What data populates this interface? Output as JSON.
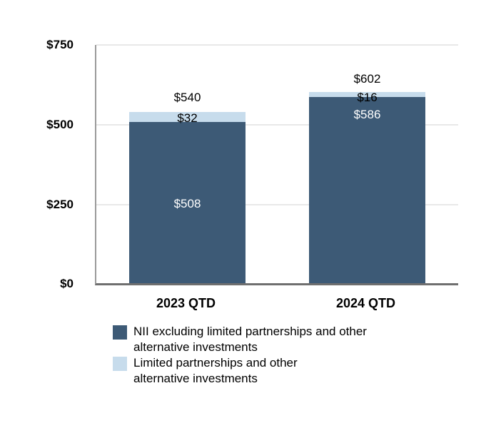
{
  "chart_data": {
    "type": "bar",
    "stacked": true,
    "title": "",
    "xlabel": "",
    "ylabel": "",
    "categories": [
      "2023 QTD",
      "2024 QTD"
    ],
    "series": [
      {
        "name": "NII excluding limited partnerships and other alternative investments",
        "color": "#3d5a76",
        "values": [
          508,
          586
        ],
        "value_labels": [
          "$508",
          "$586"
        ]
      },
      {
        "name": "Limited partnerships and other alternative investments",
        "color": "#c7dcec",
        "values": [
          32,
          16
        ],
        "value_labels": [
          "$32",
          "$16"
        ]
      }
    ],
    "totals": [
      540,
      602
    ],
    "total_labels": [
      "$540",
      "$602"
    ],
    "ylim": [
      0,
      750
    ],
    "ytick_values": [
      750,
      500,
      250,
      0
    ],
    "ytick_labels": [
      "$750",
      "$500",
      "$250",
      "$0"
    ],
    "grid": true,
    "legend_position": "bottom-left"
  },
  "legend": {
    "items": [
      {
        "line1": "NII excluding limited partnerships and other",
        "line2": "alternative investments",
        "swatch_color": "#3d5a76"
      },
      {
        "line1": "Limited partnerships and other",
        "line2": "alternative investments",
        "swatch_color": "#c7dcec"
      }
    ]
  },
  "colors": {
    "background": "#ffffff",
    "gridline": "#e8e8e8",
    "axis_line": "#9a9a9a",
    "baseline": "#6f6f6f",
    "dark_series": "#3d5a76",
    "light_series": "#c7dcec",
    "label_on_dark": "#ffffff",
    "label_on_light": "#000000"
  }
}
